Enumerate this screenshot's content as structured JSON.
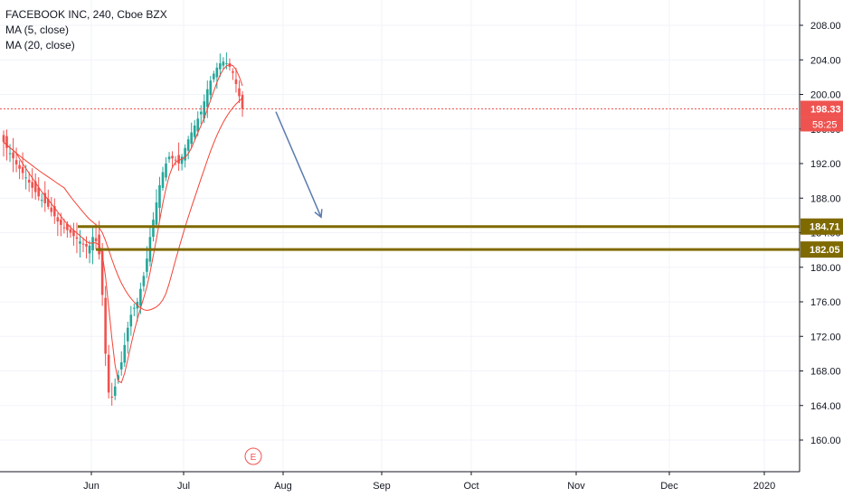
{
  "legend": {
    "title": "FACEBOOK INC, 240, Cboe BZX",
    "ma5": "MA (5, close)",
    "ma20": "MA (20, close)"
  },
  "colors": {
    "up": "#26a69a",
    "down": "#ef5350",
    "ma": "#f44336",
    "level": "#7f6a00",
    "arrow": "#5b7bb0",
    "current_price_bg": "#ef5350",
    "grid": "#f0f3fa"
  },
  "earnings_marker": "E",
  "chart_data": {
    "type": "candlestick",
    "title": "FACEBOOK INC, 240, Cboe BZX",
    "ylim": [
      156,
      211
    ],
    "y_ticks": [
      "208.00",
      "204.00",
      "200.00",
      "196.00",
      "192.00",
      "188.00",
      "184.00",
      "180.00",
      "176.00",
      "172.00",
      "168.00",
      "164.00",
      "160.00"
    ],
    "x_ticks": [
      "Jun",
      "Jul",
      "Aug",
      "Sep",
      "Oct",
      "Nov",
      "Dec",
      "2020"
    ],
    "current_price": "198.33",
    "countdown": "58:25",
    "levels": [
      {
        "label": "184.71",
        "value": 184.71
      },
      {
        "label": "182.05",
        "value": 182.05
      }
    ],
    "forecast_arrow": {
      "from": [
        "Jul 23",
        198.0
      ],
      "to": [
        "Aug 4",
        185.8
      ]
    },
    "series": [
      {
        "name": "FB",
        "kind": "candles",
        "closes": [
          194.5,
          193.8,
          193.2,
          192.6,
          191.9,
          191.4,
          190.9,
          190.4,
          189.8,
          189.2,
          188.7,
          188.2,
          187.8,
          187.4,
          187.0,
          186.4,
          185.9,
          185.3,
          184.9,
          184.6,
          184.3,
          184.0,
          183.6,
          183.3,
          183.0,
          182.7,
          182.4,
          182.5,
          183.5,
          183.0,
          181.5,
          176.8,
          170.0,
          165.5,
          165.0,
          166.2,
          167.5,
          169.0,
          171.0,
          173.0,
          174.5,
          175.3,
          176.0,
          177.5,
          179.0,
          181.0,
          183.5,
          185.5,
          187.5,
          189.5,
          191.0,
          192.0,
          192.8,
          192.6,
          192.4,
          192.0,
          192.8,
          193.8,
          194.8,
          195.6,
          196.4,
          197.2,
          198.0,
          199.2,
          200.6,
          201.6,
          202.4,
          203.1,
          203.6,
          203.8,
          203.6,
          203.2,
          202.5,
          201.2,
          199.8,
          198.33
        ]
      },
      {
        "name": "MA (5, close)",
        "kind": "line"
      },
      {
        "name": "MA (20, close)",
        "kind": "line"
      }
    ]
  }
}
